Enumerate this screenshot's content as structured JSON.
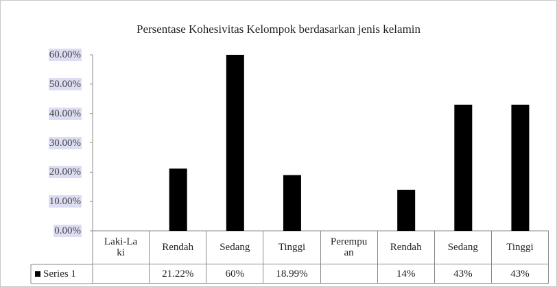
{
  "chart_data": {
    "type": "bar",
    "title": "Persentase Kohesivitas Kelompok berdasarkan jenis kelamin",
    "categories": [
      "Laki-Laki",
      "Rendah",
      "Sedang",
      "Tinggi",
      "Perempuan",
      "Rendah",
      "Sedang",
      "Tinggi"
    ],
    "series": [
      {
        "name": "Series 1",
        "color": "#000000",
        "values": [
          null,
          21.22,
          60,
          18.99,
          null,
          14,
          43,
          43
        ],
        "value_labels": [
          null,
          "21.22%",
          "60%",
          "18.99%",
          null,
          "14%",
          "43%",
          "43%"
        ]
      }
    ],
    "ylim": [
      0,
      60
    ],
    "yticks": [
      {
        "value": 0,
        "label": "0.00%"
      },
      {
        "value": 10,
        "label": "10.00%"
      },
      {
        "value": 20,
        "label": "20.00%"
      },
      {
        "value": 30,
        "label": "30.00%"
      },
      {
        "value": 40,
        "label": "40.00%"
      },
      {
        "value": 50,
        "label": "50.00%"
      },
      {
        "value": 60,
        "label": "60.00%"
      }
    ],
    "data_table": true
  }
}
